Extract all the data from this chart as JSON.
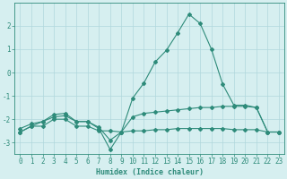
{
  "x": [
    0,
    1,
    2,
    3,
    4,
    5,
    6,
    7,
    8,
    9,
    10,
    11,
    12,
    13,
    14,
    15,
    16,
    17,
    18,
    19,
    20,
    21,
    22,
    23
  ],
  "line1": [
    -2.4,
    -2.2,
    -2.1,
    -1.8,
    -1.75,
    -2.1,
    -2.1,
    -2.4,
    -3.3,
    -2.55,
    -1.1,
    -0.45,
    0.45,
    0.95,
    1.7,
    2.5,
    2.1,
    1.0,
    -0.5,
    -1.4,
    -1.4,
    -1.5,
    -2.55,
    -2.55
  ],
  "line2": [
    -2.55,
    -2.3,
    -2.3,
    -2.0,
    -2.0,
    -2.3,
    -2.3,
    -2.5,
    -2.5,
    -2.55,
    -2.5,
    -2.5,
    -2.45,
    -2.45,
    -2.4,
    -2.4,
    -2.4,
    -2.4,
    -2.4,
    -2.45,
    -2.45,
    -2.45,
    -2.55,
    -2.55
  ],
  "line3": [
    -2.55,
    -2.3,
    -2.1,
    -1.9,
    -1.85,
    -2.1,
    -2.1,
    -2.35,
    -2.9,
    -2.55,
    -1.9,
    -1.75,
    -1.7,
    -1.65,
    -1.6,
    -1.55,
    -1.5,
    -1.5,
    -1.45,
    -1.45,
    -1.45,
    -1.5,
    -2.55,
    -2.55
  ],
  "line_color": "#2e8b7a",
  "bg_color": "#d6eff0",
  "grid_color": "#b0d8dc",
  "xlabel": "Humidex (Indice chaleur)",
  "ylim": [
    -3.5,
    3.0
  ],
  "xlim": [
    -0.5,
    23.5
  ],
  "yticks": [
    -3,
    -2,
    -1,
    0,
    1,
    2
  ],
  "xticks": [
    0,
    1,
    2,
    3,
    4,
    5,
    6,
    7,
    8,
    9,
    10,
    11,
    12,
    13,
    14,
    15,
    16,
    17,
    18,
    19,
    20,
    21,
    22,
    23
  ],
  "axis_fontsize": 6,
  "tick_fontsize": 5.5
}
